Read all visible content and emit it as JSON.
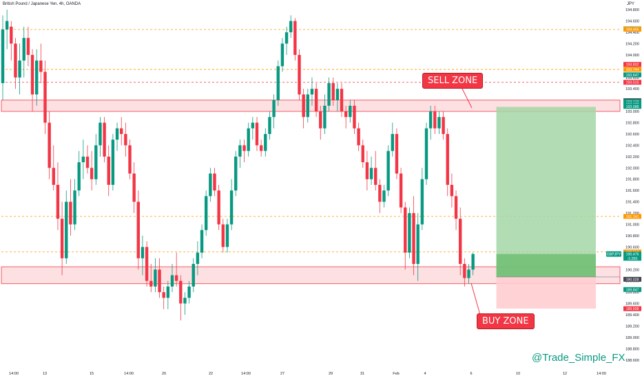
{
  "header": {
    "title": "British Pound / Japanese Yen, 4h, OANDA",
    "currency": "JPY"
  },
  "watermark": "@Trade_Simple_FX",
  "chart_data": {
    "type": "candlestick",
    "symbol": "GBPJPY",
    "ylim": [
      188.5,
      194.85
    ],
    "y_ticks": [
      "194.800",
      "194.600",
      "194.400",
      "194.200",
      "194.000",
      "193.800",
      "193.600",
      "193.400",
      "193.200",
      "193.000",
      "192.800",
      "192.600",
      "192.400",
      "192.200",
      "192.000",
      "191.800",
      "191.600",
      "191.400",
      "191.200",
      "191.000",
      "190.800",
      "190.600",
      "190.400",
      "190.200",
      "190.000",
      "189.800",
      "189.600",
      "189.400",
      "189.200",
      "189.000",
      "188.800",
      "188.600"
    ],
    "x_ticks": [
      "14:00",
      "13",
      "15",
      "14:00",
      "20",
      "22",
      "14:00",
      "27",
      "29",
      "31",
      "Feb",
      "4",
      "6",
      "10",
      "12",
      "14:00"
    ],
    "candles": [
      [
        193.5,
        194.7,
        193.2,
        194.45
      ],
      [
        194.45,
        194.8,
        194.1,
        194.6
      ],
      [
        194.5,
        194.6,
        193.9,
        194.2
      ],
      [
        194.2,
        194.3,
        193.4,
        193.6
      ],
      [
        193.6,
        194.2,
        193.3,
        193.9
      ],
      [
        193.9,
        194.5,
        193.6,
        194.3
      ],
      [
        194.3,
        194.5,
        193.8,
        194.0
      ],
      [
        194.0,
        194.1,
        193.0,
        193.3
      ],
      [
        193.3,
        194.1,
        193.1,
        193.9
      ],
      [
        193.9,
        194.2,
        193.5,
        193.7
      ],
      [
        193.7,
        193.9,
        192.6,
        192.8
      ],
      [
        192.8,
        193.0,
        191.8,
        192.0
      ],
      [
        192.0,
        192.4,
        191.6,
        191.7
      ],
      [
        191.7,
        192.1,
        190.9,
        191.1
      ],
      [
        191.1,
        191.4,
        190.1,
        190.4
      ],
      [
        190.4,
        191.6,
        190.3,
        191.4
      ],
      [
        191.4,
        191.8,
        190.8,
        191.0
      ],
      [
        191.0,
        191.8,
        190.9,
        191.6
      ],
      [
        191.6,
        192.3,
        191.5,
        192.1
      ],
      [
        192.1,
        192.5,
        191.8,
        192.2
      ],
      [
        192.2,
        192.4,
        191.9,
        192.0
      ],
      [
        192.0,
        192.3,
        191.6,
        191.8
      ],
      [
        191.8,
        192.6,
        191.7,
        192.4
      ],
      [
        192.4,
        192.9,
        192.2,
        192.8
      ],
      [
        192.8,
        192.9,
        192.1,
        192.2
      ],
      [
        192.2,
        192.4,
        191.5,
        191.7
      ],
      [
        191.7,
        192.6,
        191.6,
        192.5
      ],
      [
        192.5,
        192.8,
        192.3,
        192.7
      ],
      [
        192.7,
        192.9,
        192.4,
        192.6
      ],
      [
        192.6,
        192.8,
        192.2,
        192.4
      ],
      [
        192.4,
        192.5,
        191.8,
        191.9
      ],
      [
        191.9,
        192.1,
        191.2,
        191.4
      ],
      [
        191.4,
        191.6,
        190.2,
        190.4
      ],
      [
        190.4,
        190.8,
        190.1,
        190.6
      ],
      [
        190.6,
        190.7,
        189.9,
        190.0
      ],
      [
        190.0,
        190.3,
        189.8,
        189.9
      ],
      [
        189.9,
        190.4,
        189.8,
        190.2
      ],
      [
        190.2,
        190.4,
        189.7,
        189.8
      ],
      [
        189.8,
        189.9,
        189.5,
        189.7
      ],
      [
        189.7,
        190.0,
        189.5,
        189.9
      ],
      [
        189.9,
        190.3,
        189.8,
        190.1
      ],
      [
        190.1,
        190.5,
        189.9,
        190.0
      ],
      [
        190.0,
        190.1,
        189.3,
        189.6
      ],
      [
        189.6,
        189.8,
        189.4,
        189.7
      ],
      [
        189.7,
        190.0,
        189.6,
        189.9
      ],
      [
        189.9,
        190.4,
        189.8,
        190.3
      ],
      [
        190.3,
        190.7,
        190.1,
        190.5
      ],
      [
        190.5,
        191.0,
        190.4,
        190.9
      ],
      [
        190.9,
        191.6,
        190.8,
        191.5
      ],
      [
        191.5,
        192.0,
        191.4,
        191.9
      ],
      [
        191.9,
        192.0,
        191.5,
        191.6
      ],
      [
        191.6,
        191.7,
        190.9,
        191.0
      ],
      [
        191.0,
        191.1,
        190.5,
        190.6
      ],
      [
        190.6,
        191.1,
        190.5,
        191.0
      ],
      [
        191.0,
        191.8,
        190.9,
        191.6
      ],
      [
        191.6,
        192.3,
        191.5,
        192.2
      ],
      [
        192.2,
        192.5,
        192.0,
        192.4
      ],
      [
        192.4,
        192.5,
        192.1,
        192.3
      ],
      [
        192.3,
        192.8,
        192.2,
        192.7
      ],
      [
        192.7,
        192.9,
        192.5,
        192.8
      ],
      [
        192.8,
        192.9,
        192.3,
        192.4
      ],
      [
        192.4,
        192.5,
        192.2,
        192.3
      ],
      [
        192.3,
        192.7,
        192.2,
        192.6
      ],
      [
        192.6,
        193.0,
        192.5,
        192.9
      ],
      [
        192.9,
        193.3,
        192.7,
        193.2
      ],
      [
        193.2,
        193.9,
        193.1,
        193.8
      ],
      [
        193.8,
        194.3,
        193.7,
        194.2
      ],
      [
        194.2,
        194.5,
        194.0,
        194.4
      ],
      [
        194.4,
        194.7,
        194.3,
        194.6
      ],
      [
        194.6,
        194.65,
        193.9,
        194.0
      ],
      [
        194.0,
        194.1,
        193.2,
        193.3
      ],
      [
        193.3,
        193.4,
        192.7,
        192.9
      ],
      [
        192.9,
        193.4,
        192.8,
        193.3
      ],
      [
        193.3,
        193.6,
        193.1,
        193.4
      ],
      [
        193.4,
        193.5,
        192.9,
        193.0
      ],
      [
        193.0,
        193.1,
        192.5,
        192.7
      ],
      [
        192.7,
        193.3,
        192.6,
        193.1
      ],
      [
        193.1,
        193.6,
        193.0,
        193.5
      ],
      [
        193.5,
        193.6,
        193.1,
        193.2
      ],
      [
        193.2,
        193.5,
        193.0,
        193.4
      ],
      [
        193.4,
        193.5,
        192.9,
        193.0
      ],
      [
        193.0,
        193.1,
        192.7,
        192.9
      ],
      [
        192.9,
        193.2,
        192.8,
        193.1
      ],
      [
        193.1,
        193.2,
        192.6,
        192.7
      ],
      [
        192.7,
        192.8,
        192.3,
        192.4
      ],
      [
        192.4,
        192.5,
        192.0,
        192.1
      ],
      [
        192.1,
        192.3,
        191.6,
        191.8
      ],
      [
        191.8,
        192.2,
        191.7,
        192.0
      ],
      [
        192.0,
        192.3,
        191.6,
        191.7
      ],
      [
        191.7,
        191.8,
        191.2,
        191.4
      ],
      [
        191.4,
        191.7,
        191.3,
        191.6
      ],
      [
        191.6,
        192.4,
        191.5,
        192.3
      ],
      [
        192.3,
        192.8,
        192.2,
        192.6
      ],
      [
        192.6,
        192.7,
        191.8,
        191.9
      ],
      [
        191.9,
        192.0,
        191.2,
        191.3
      ],
      [
        191.3,
        191.4,
        190.2,
        190.5
      ],
      [
        190.5,
        191.3,
        190.4,
        191.2
      ],
      [
        191.2,
        191.5,
        190.1,
        190.3
      ],
      [
        190.3,
        191.2,
        190.0,
        191.0
      ],
      [
        191.0,
        192.0,
        190.9,
        191.8
      ],
      [
        191.8,
        192.8,
        191.7,
        192.7
      ],
      [
        192.7,
        193.1,
        192.5,
        193.0
      ],
      [
        193.0,
        193.1,
        192.6,
        192.7
      ],
      [
        192.7,
        193.0,
        192.6,
        192.9
      ],
      [
        192.9,
        193.0,
        192.5,
        192.6
      ],
      [
        192.6,
        192.7,
        191.5,
        191.7
      ],
      [
        191.7,
        191.9,
        191.3,
        191.5
      ],
      [
        191.5,
        191.6,
        190.9,
        191.1
      ],
      [
        191.1,
        191.3,
        190.1,
        190.3
      ],
      [
        190.3,
        190.4,
        189.9,
        190.05
      ],
      [
        190.05,
        190.3,
        189.95,
        190.2
      ],
      [
        190.2,
        190.5,
        190.1,
        190.476
      ]
    ],
    "horizontal_levels": [
      {
        "price": 194.45,
        "style": "dashed",
        "color": "#ff9800"
      },
      {
        "price": 193.744,
        "style": "dashed",
        "color": "#ff9800"
      },
      {
        "price": 193.515,
        "style": "dashed",
        "color": "#f23645"
      },
      {
        "price": 191.141,
        "style": "dashed",
        "color": "#ff9800"
      },
      {
        "price": 190.512,
        "style": "dashed",
        "color": "#ff9800"
      }
    ],
    "zones": [
      {
        "name": "SELL ZONE",
        "top": 193.2,
        "bottom": 193.0,
        "color": "#f23645"
      },
      {
        "name": "BUY ZONE",
        "top": 190.25,
        "bottom": 189.95,
        "color": "#f23645"
      }
    ],
    "position": {
      "entry": 190.07,
      "target": 193.08,
      "stop": 189.51,
      "current": 190.476,
      "start_index": 117,
      "end_index": 140
    },
    "price_labels": [
      {
        "text": "194.460",
        "color": "#089981"
      },
      {
        "text": "194.455",
        "color": "#ff9800"
      },
      {
        "text": "193.832",
        "color": "#f23645"
      },
      {
        "text": "193.744",
        "color": "#ff9800"
      },
      {
        "text": "193.647",
        "color": "#089981"
      },
      {
        "text": "193.515",
        "color": "#f23645"
      },
      {
        "text": "193.189",
        "color": "#434651"
      },
      {
        "text": "193.173",
        "color": "#089981"
      },
      {
        "text": "193.129",
        "color": "#089981"
      },
      {
        "text": "193.088",
        "color": "#089981"
      },
      {
        "text": "191.141",
        "color": "#ff9800"
      },
      {
        "text": "190.512",
        "color": "#ff9800"
      },
      {
        "text": "190.476",
        "color": "#089981"
      },
      {
        "text": "-2.28S",
        "color": "#089981"
      },
      {
        "text": "190.028",
        "color": "#434651"
      },
      {
        "text": "189.847",
        "color": "#089981"
      },
      {
        "text": "189.508",
        "color": "#f23645"
      }
    ],
    "price_label_prices": [
      194.46,
      194.455,
      193.832,
      193.744,
      193.647,
      193.515,
      193.189,
      193.173,
      193.129,
      193.088,
      191.141,
      190.512,
      190.476,
      190.4,
      190.028,
      189.847,
      189.508
    ],
    "symbol_tag": "GBPJPY",
    "colors": {
      "up": "#089981",
      "down": "#f23645",
      "target_fill": "#a5d6a7",
      "stop_fill": "#ffcdd2",
      "zone_fill": "#fde0e2"
    }
  },
  "zones_labels": {
    "sell": "SELL ZONE",
    "buy": "BUY ZONE"
  }
}
